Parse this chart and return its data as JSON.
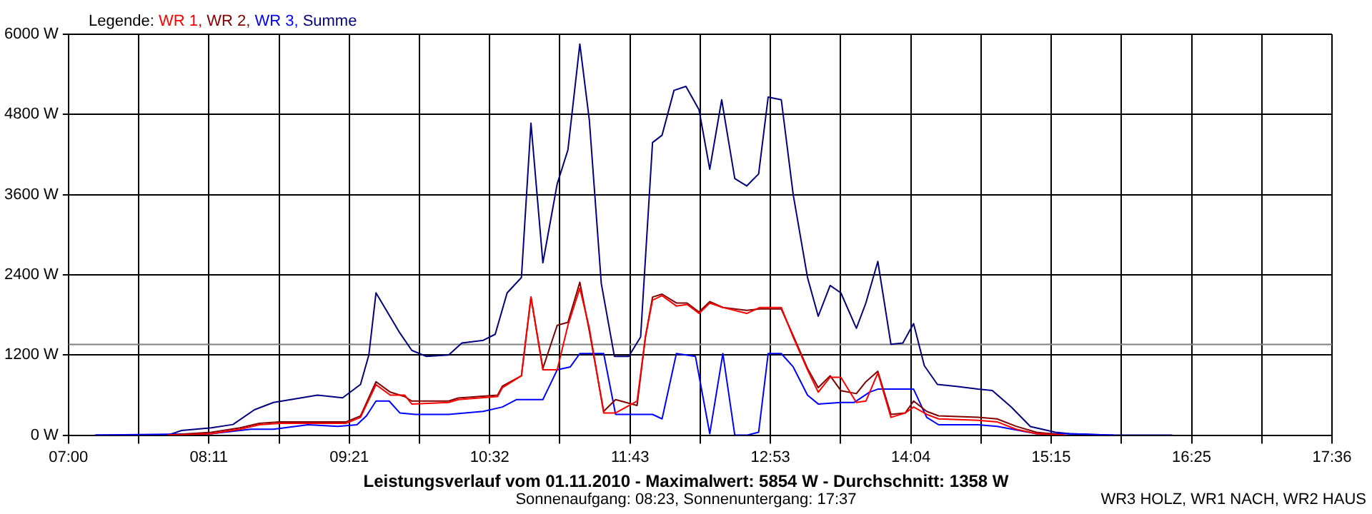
{
  "chart_data": {
    "type": "line",
    "title": "Leistungsverlauf vom 01.11.2010 - Maximalwert: 5854 W - Durchschnitt: 1358 W",
    "subtitle": "Sonnenaufgang: 08:23, Sonnenuntergang: 17:37",
    "legend_title": "Legende:",
    "legend": "top left",
    "grid": true,
    "marker": "none",
    "line_style": "solid",
    "annotations": [
      "WR3 HOLZ, WR1 NACH, WR2 HAUS"
    ],
    "xlim": [
      7,
      17.6
    ],
    "xticks": [
      {
        "value": 7,
        "label": "07:00"
      },
      {
        "value": 7.5889,
        "label": null
      },
      {
        "value": 8.1778,
        "label": "08:11"
      },
      {
        "value": 8.7667,
        "label": null
      },
      {
        "value": 9.3556,
        "label": "09:21"
      },
      {
        "value": 9.9444,
        "label": null
      },
      {
        "value": 10.5333,
        "label": "10:32"
      },
      {
        "value": 11.1222,
        "label": null
      },
      {
        "value": 11.7111,
        "label": "11:43"
      },
      {
        "value": 12.3,
        "label": null
      },
      {
        "value": 12.8889,
        "label": "12:53"
      },
      {
        "value": 13.4778,
        "label": null
      },
      {
        "value": 14.0667,
        "label": "14:04"
      },
      {
        "value": 14.6556,
        "label": null
      },
      {
        "value": 15.2444,
        "label": "15:15"
      },
      {
        "value": 15.8333,
        "label": null
      },
      {
        "value": 16.4222,
        "label": "16:25"
      },
      {
        "value": 17.0111,
        "label": null
      },
      {
        "value": 17.6,
        "label": "17:36"
      }
    ],
    "ylim": [
      0,
      6000
    ],
    "yticks": [
      {
        "value": 0,
        "label": "0 W"
      },
      {
        "value": 1200,
        "label": "1200 W"
      },
      {
        "value": 2400,
        "label": "2400 W"
      },
      {
        "value": 3600,
        "label": "3600 W"
      },
      {
        "value": 4800,
        "label": "4800 W"
      },
      {
        "value": 6000,
        "label": "6000 W"
      }
    ],
    "ref_lines": [
      {
        "axis": "y",
        "value": 1358,
        "color": "#808080"
      }
    ],
    "series": [
      {
        "name": "WR 1,",
        "color": "#ff0000",
        "x": [
          7.83,
          8.2,
          8.44,
          8.6,
          8.77,
          9.33,
          9.45,
          9.58,
          9.7,
          9.82,
          9.88,
          10.19,
          10.27,
          10.6,
          10.64,
          10.8,
          10.88,
          10.98,
          11.1,
          11.19,
          11.29,
          11.37,
          11.49,
          11.59,
          11.77,
          11.84,
          11.9,
          11.98,
          12.1,
          12.19,
          12.29,
          12.38,
          12.49,
          12.69,
          12.8,
          12.98,
          13.08,
          13.2,
          13.29,
          13.39,
          13.48,
          13.61,
          13.69,
          13.79,
          13.9,
          14.02,
          14.09,
          14.2,
          14.3,
          14.63,
          14.79,
          14.95,
          15.12,
          15.36
        ],
        "values": [
          0,
          22,
          89,
          156,
          178,
          178,
          267,
          756,
          600,
          600,
          467,
          489,
          533,
          578,
          711,
          889,
          2067,
          978,
          978,
          1644,
          2200,
          1600,
          333,
          333,
          511,
          1467,
          2022,
          2089,
          1933,
          1956,
          1822,
          1978,
          1911,
          1822,
          1911,
          1911,
          1467,
          978,
          644,
          867,
          867,
          489,
          511,
          933,
          267,
          333,
          422,
          311,
          244,
          222,
          200,
          89,
          22,
          0
        ]
      },
      {
        "name": "WR 2,",
        "color": "#800000",
        "x": [
          7.83,
          8.2,
          8.44,
          8.6,
          8.77,
          9.33,
          9.45,
          9.58,
          9.7,
          9.82,
          9.88,
          10.19,
          10.27,
          10.6,
          10.64,
          10.8,
          10.88,
          10.98,
          11.1,
          11.19,
          11.29,
          11.37,
          11.49,
          11.59,
          11.77,
          11.84,
          11.9,
          11.98,
          12.1,
          12.19,
          12.29,
          12.38,
          12.49,
          12.69,
          12.8,
          12.98,
          13.08,
          13.2,
          13.29,
          13.39,
          13.48,
          13.61,
          13.69,
          13.79,
          13.9,
          14.02,
          14.09,
          14.2,
          14.3,
          14.63,
          14.79,
          14.95,
          15.12,
          15.36
        ],
        "values": [
          0,
          44,
          111,
          178,
          200,
          200,
          289,
          800,
          644,
          578,
          511,
          511,
          556,
          600,
          733,
          889,
          2067,
          1000,
          1644,
          1689,
          2289,
          1556,
          356,
          533,
          444,
          1467,
          2067,
          2111,
          1978,
          1978,
          1844,
          2000,
          1911,
          1867,
          1889,
          1889,
          1489,
          1000,
          711,
          889,
          667,
          622,
          800,
          956,
          311,
          333,
          511,
          356,
          289,
          267,
          244,
          133,
          44,
          0
        ]
      },
      {
        "name": "WR 3,",
        "color": "#0000ff",
        "x": [
          7.22,
          8.2,
          8.53,
          8.72,
          9.01,
          9.26,
          9.42,
          9.5,
          9.58,
          9.69,
          9.78,
          9.91,
          10.19,
          10.48,
          10.64,
          10.76,
          10.98,
          11.1,
          11.21,
          11.29,
          11.49,
          11.59,
          11.9,
          11.98,
          12.1,
          12.26,
          12.38,
          12.49,
          12.59,
          12.69,
          12.79,
          12.87,
          12.98,
          13.08,
          13.2,
          13.29,
          13.48,
          13.59,
          13.72,
          13.79,
          14.09,
          14.2,
          14.3,
          14.63,
          14.79,
          15.12,
          15.36,
          15.77
        ],
        "values": [
          0,
          22,
          89,
          89,
          156,
          133,
          156,
          289,
          511,
          511,
          333,
          311,
          311,
          356,
          422,
          533,
          533,
          978,
          1022,
          1222,
          1222,
          311,
          311,
          244,
          1222,
          1178,
          22,
          1222,
          0,
          0,
          44,
          1222,
          1222,
          1022,
          600,
          467,
          489,
          489,
          644,
          689,
          689,
          267,
          156,
          156,
          133,
          22,
          22,
          0
        ]
      },
      {
        "name": "Summe",
        "color": "#000080",
        "x": [
          7.23,
          7.83,
          7.95,
          8.2,
          8.38,
          8.56,
          8.72,
          9.09,
          9.3,
          9.45,
          9.52,
          9.58,
          9.78,
          9.88,
          10.0,
          10.19,
          10.3,
          10.48,
          10.58,
          10.68,
          10.8,
          10.88,
          10.98,
          11.1,
          11.19,
          11.29,
          11.37,
          11.47,
          11.58,
          11.7,
          11.8,
          11.9,
          11.98,
          12.08,
          12.18,
          12.29,
          12.38,
          12.48,
          12.59,
          12.69,
          12.79,
          12.87,
          12.98,
          13.08,
          13.2,
          13.29,
          13.39,
          13.48,
          13.61,
          13.69,
          13.79,
          13.9,
          14.0,
          14.09,
          14.18,
          14.29,
          14.45,
          14.63,
          14.75,
          14.91,
          15.07,
          15.28,
          15.4,
          15.73,
          16.26
        ],
        "values": [
          0,
          0,
          70,
          110,
          160,
          380,
          490,
          600,
          560,
          760,
          1200,
          2130,
          1530,
          1270,
          1180,
          1200,
          1380,
          1420,
          1510,
          2130,
          2360,
          4670,
          2580,
          3760,
          4270,
          5854,
          4710,
          2270,
          1180,
          1180,
          1470,
          4380,
          4490,
          5160,
          5220,
          4870,
          3980,
          5020,
          3840,
          3730,
          3910,
          5060,
          5020,
          3600,
          2360,
          1780,
          2240,
          2130,
          1600,
          1980,
          2600,
          1360,
          1380,
          1670,
          1040,
          760,
          730,
          690,
          670,
          420,
          130,
          44,
          22,
          0,
          0
        ]
      }
    ]
  }
}
